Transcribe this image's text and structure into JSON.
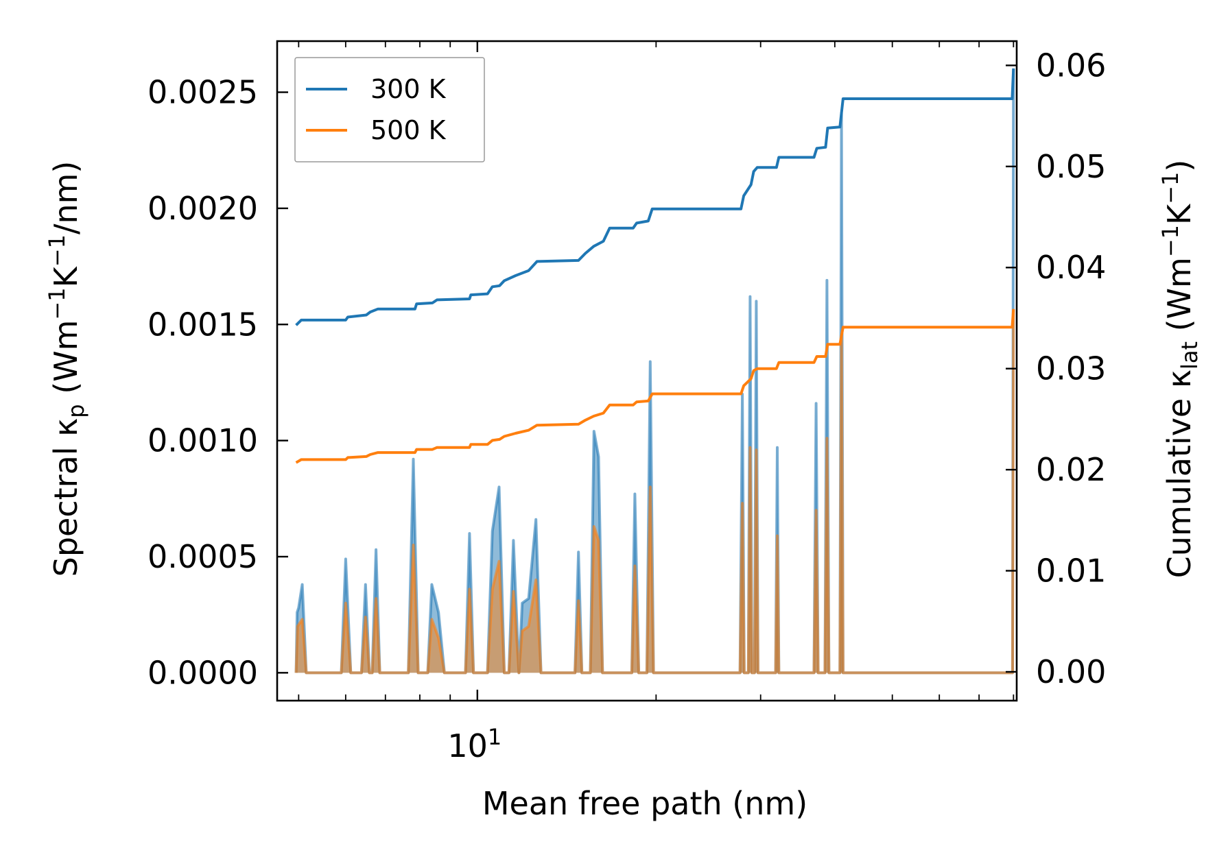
{
  "chart_data": {
    "type": "line",
    "xlabel": "Mean free path (nm)",
    "xscale": "log",
    "xlim": [
      4.6,
      81
    ],
    "x_major_ticks": [
      {
        "value": 10,
        "label": "10",
        "exp": "1"
      }
    ],
    "ylabel_left": {
      "pre": "Spectral κ",
      "sub": "p",
      "mid": " (Wm",
      "sup1": "−1",
      "mid2": "K",
      "sup2": "−1",
      "post": "/nm)"
    },
    "ylabel_right": {
      "pre": "Cumulative κ",
      "sub": "lat",
      "mid": " (Wm",
      "sup1": "−1",
      "mid2": "K",
      "sup2": "−1",
      "post": ")"
    },
    "ylim_left": [
      -0.00012,
      0.00272
    ],
    "ylim_right": [
      -0.00285,
      0.0624
    ],
    "left_ticks": [
      {
        "value": 0.0,
        "label": "0.0000"
      },
      {
        "value": 0.0005,
        "label": "0.0005"
      },
      {
        "value": 0.001,
        "label": "0.0010"
      },
      {
        "value": 0.0015,
        "label": "0.0015"
      },
      {
        "value": 0.002,
        "label": "0.0020"
      },
      {
        "value": 0.0025,
        "label": "0.0025"
      }
    ],
    "right_ticks": [
      {
        "value": 0.0,
        "label": "0.00"
      },
      {
        "value": 0.01,
        "label": "0.01"
      },
      {
        "value": 0.02,
        "label": "0.02"
      },
      {
        "value": 0.03,
        "label": "0.03"
      },
      {
        "value": 0.04,
        "label": "0.04"
      },
      {
        "value": 0.05,
        "label": "0.05"
      },
      {
        "value": 0.06,
        "label": "0.06"
      }
    ],
    "legend": {
      "position": "upper-left",
      "entries": [
        "300 K",
        "500 K"
      ]
    },
    "series": [
      {
        "name": "300 K",
        "color": "#1f77b4",
        "spectral": [
          [
            4.95,
            0.0
          ],
          [
            4.97,
            0.00026
          ],
          [
            5.0,
            0.00028
          ],
          [
            5.07,
            0.00038
          ],
          [
            5.15,
            0.0
          ],
          [
            5.9,
            0.0
          ],
          [
            6.0,
            0.00049
          ],
          [
            6.12,
            0.0
          ],
          [
            6.38,
            0.0
          ],
          [
            6.48,
            0.00038
          ],
          [
            6.58,
            0.0
          ],
          [
            6.65,
            0.0
          ],
          [
            6.75,
            0.00053
          ],
          [
            6.85,
            0.0
          ],
          [
            7.65,
            0.0
          ],
          [
            7.8,
            0.00092
          ],
          [
            7.95,
            0.0
          ],
          [
            8.25,
            0.0
          ],
          [
            8.38,
            0.00038
          ],
          [
            8.6,
            0.00026
          ],
          [
            8.8,
            0.0
          ],
          [
            9.55,
            0.0
          ],
          [
            9.7,
            0.0006
          ],
          [
            9.85,
            0.0
          ],
          [
            10.4,
            0.0
          ],
          [
            10.6,
            0.00061
          ],
          [
            10.88,
            0.0008
          ],
          [
            11.1,
            0.0
          ],
          [
            11.3,
            0.0
          ],
          [
            11.5,
            0.00057
          ],
          [
            11.75,
            0.0
          ],
          [
            11.9,
            0.0003
          ],
          [
            12.2,
            0.00032
          ],
          [
            12.55,
            0.00066
          ],
          [
            12.8,
            0.0
          ],
          [
            14.6,
            0.0
          ],
          [
            14.8,
            0.00052
          ],
          [
            15.0,
            0.0
          ],
          [
            15.5,
            0.0
          ],
          [
            15.72,
            0.00104
          ],
          [
            16.0,
            0.00093
          ],
          [
            16.25,
            0.0
          ],
          [
            18.2,
            0.0
          ],
          [
            18.42,
            0.00077
          ],
          [
            18.7,
            0.0
          ],
          [
            19.3,
            0.0
          ],
          [
            19.55,
            0.00134
          ],
          [
            19.8,
            0.0
          ],
          [
            27.7,
            0.0
          ],
          [
            27.95,
            0.0012
          ],
          [
            28.15,
            0.0
          ],
          [
            28.6,
            0.0
          ],
          [
            28.8,
            0.00162
          ],
          [
            29.0,
            0.0
          ],
          [
            29.3,
            0.0
          ],
          [
            29.5,
            0.0016
          ],
          [
            29.7,
            0.0
          ],
          [
            31.8,
            0.0
          ],
          [
            32.0,
            0.00097
          ],
          [
            32.2,
            0.0
          ],
          [
            36.9,
            0.0
          ],
          [
            37.2,
            0.00116
          ],
          [
            37.5,
            0.0
          ],
          [
            38.5,
            0.0
          ],
          [
            38.8,
            0.00169
          ],
          [
            39.1,
            0.0
          ],
          [
            40.8,
            0.0
          ],
          [
            41.05,
            0.00241
          ],
          [
            41.3,
            0.0
          ],
          [
            79.7,
            0.0
          ],
          [
            80.0,
            0.0026
          ]
        ],
        "cumulative": [
          [
            4.95,
            0.0343
          ],
          [
            5.05,
            0.0348
          ],
          [
            6.0,
            0.0348
          ],
          [
            6.05,
            0.0351
          ],
          [
            6.5,
            0.0353
          ],
          [
            6.6,
            0.0356
          ],
          [
            6.8,
            0.0359
          ],
          [
            7.85,
            0.0359
          ],
          [
            7.9,
            0.0364
          ],
          [
            8.4,
            0.0365
          ],
          [
            8.55,
            0.0368
          ],
          [
            9.7,
            0.0369
          ],
          [
            9.75,
            0.0373
          ],
          [
            10.4,
            0.0374
          ],
          [
            10.6,
            0.0381
          ],
          [
            10.9,
            0.0382
          ],
          [
            11.1,
            0.0387
          ],
          [
            11.6,
            0.0392
          ],
          [
            12.2,
            0.0397
          ],
          [
            12.6,
            0.0406
          ],
          [
            14.8,
            0.0407
          ],
          [
            15.2,
            0.0414
          ],
          [
            15.7,
            0.0421
          ],
          [
            16.3,
            0.0426
          ],
          [
            16.7,
            0.0439
          ],
          [
            18.3,
            0.0439
          ],
          [
            18.55,
            0.0444
          ],
          [
            19.4,
            0.0446
          ],
          [
            19.7,
            0.0458
          ],
          [
            27.8,
            0.0458
          ],
          [
            28.1,
            0.0471
          ],
          [
            28.9,
            0.0482
          ],
          [
            29.2,
            0.0495
          ],
          [
            29.6,
            0.0499
          ],
          [
            31.9,
            0.0499
          ],
          [
            32.2,
            0.0509
          ],
          [
            36.9,
            0.0509
          ],
          [
            37.3,
            0.0518
          ],
          [
            38.6,
            0.0519
          ],
          [
            38.9,
            0.0538
          ],
          [
            40.8,
            0.0539
          ],
          [
            41.3,
            0.0567
          ],
          [
            79.6,
            0.0567
          ],
          [
            80.0,
            0.0597
          ]
        ]
      },
      {
        "name": "500 K",
        "color": "#ff7f0e",
        "spectral": [
          [
            4.95,
            0.0
          ],
          [
            4.98,
            0.0002
          ],
          [
            5.07,
            0.00023
          ],
          [
            5.15,
            0.0
          ],
          [
            5.9,
            0.0
          ],
          [
            6.0,
            0.0003
          ],
          [
            6.12,
            0.0
          ],
          [
            6.38,
            0.0
          ],
          [
            6.48,
            0.00024
          ],
          [
            6.58,
            0.0
          ],
          [
            6.65,
            0.0
          ],
          [
            6.75,
            0.00032
          ],
          [
            6.85,
            0.0
          ],
          [
            7.65,
            0.0
          ],
          [
            7.8,
            0.00055
          ],
          [
            7.95,
            0.0
          ],
          [
            8.25,
            0.0
          ],
          [
            8.38,
            0.00023
          ],
          [
            8.6,
            0.00015
          ],
          [
            8.8,
            0.0
          ],
          [
            9.55,
            0.0
          ],
          [
            9.7,
            0.00036
          ],
          [
            9.85,
            0.0
          ],
          [
            10.4,
            0.0
          ],
          [
            10.6,
            0.00036
          ],
          [
            10.88,
            0.00048
          ],
          [
            11.1,
            0.0
          ],
          [
            11.3,
            0.0
          ],
          [
            11.5,
            0.00035
          ],
          [
            11.75,
            0.0
          ],
          [
            11.9,
            0.00018
          ],
          [
            12.2,
            0.0002
          ],
          [
            12.55,
            0.0004
          ],
          [
            12.8,
            0.0
          ],
          [
            14.6,
            0.0
          ],
          [
            14.8,
            0.00031
          ],
          [
            15.0,
            0.0
          ],
          [
            15.5,
            0.0
          ],
          [
            15.72,
            0.00063
          ],
          [
            16.0,
            0.00057
          ],
          [
            16.25,
            0.0
          ],
          [
            18.2,
            0.0
          ],
          [
            18.42,
            0.00046
          ],
          [
            18.7,
            0.0
          ],
          [
            19.3,
            0.0
          ],
          [
            19.55,
            0.0008
          ],
          [
            19.8,
            0.0
          ],
          [
            27.7,
            0.0
          ],
          [
            27.95,
            0.00073
          ],
          [
            28.15,
            0.0
          ],
          [
            28.6,
            0.0
          ],
          [
            28.8,
            0.00097
          ],
          [
            29.0,
            0.0
          ],
          [
            29.3,
            0.0
          ],
          [
            29.5,
            0.00096
          ],
          [
            29.7,
            0.0
          ],
          [
            31.8,
            0.0
          ],
          [
            32.0,
            0.00059
          ],
          [
            32.2,
            0.0
          ],
          [
            36.9,
            0.0
          ],
          [
            37.2,
            0.0007
          ],
          [
            37.5,
            0.0
          ],
          [
            38.5,
            0.0
          ],
          [
            38.8,
            0.00101
          ],
          [
            39.1,
            0.0
          ],
          [
            40.8,
            0.0
          ],
          [
            41.05,
            0.00145
          ],
          [
            41.3,
            0.0
          ],
          [
            79.7,
            0.0
          ],
          [
            80.0,
            0.00156
          ]
        ],
        "cumulative": [
          [
            4.95,
            0.0207
          ],
          [
            5.05,
            0.021
          ],
          [
            6.0,
            0.021
          ],
          [
            6.05,
            0.0212
          ],
          [
            6.5,
            0.0213
          ],
          [
            6.6,
            0.0215
          ],
          [
            6.8,
            0.0217
          ],
          [
            7.85,
            0.0217
          ],
          [
            7.9,
            0.022
          ],
          [
            8.4,
            0.022
          ],
          [
            8.55,
            0.0222
          ],
          [
            9.7,
            0.0222
          ],
          [
            9.75,
            0.0225
          ],
          [
            10.4,
            0.0225
          ],
          [
            10.6,
            0.0229
          ],
          [
            10.9,
            0.023
          ],
          [
            11.1,
            0.0233
          ],
          [
            11.6,
            0.0236
          ],
          [
            12.2,
            0.0239
          ],
          [
            12.6,
            0.0244
          ],
          [
            14.8,
            0.0245
          ],
          [
            15.2,
            0.0249
          ],
          [
            15.7,
            0.0253
          ],
          [
            16.3,
            0.0256
          ],
          [
            16.7,
            0.0264
          ],
          [
            18.3,
            0.0264
          ],
          [
            18.55,
            0.0267
          ],
          [
            19.4,
            0.0268
          ],
          [
            19.7,
            0.0275
          ],
          [
            27.8,
            0.0275
          ],
          [
            28.1,
            0.0283
          ],
          [
            28.9,
            0.029
          ],
          [
            29.2,
            0.0298
          ],
          [
            29.6,
            0.03
          ],
          [
            31.9,
            0.03
          ],
          [
            32.2,
            0.0306
          ],
          [
            36.9,
            0.0306
          ],
          [
            37.3,
            0.0312
          ],
          [
            38.6,
            0.0312
          ],
          [
            38.9,
            0.0324
          ],
          [
            40.8,
            0.0324
          ],
          [
            41.3,
            0.0341
          ],
          [
            79.6,
            0.0341
          ],
          [
            80.0,
            0.0359
          ]
        ]
      }
    ]
  }
}
